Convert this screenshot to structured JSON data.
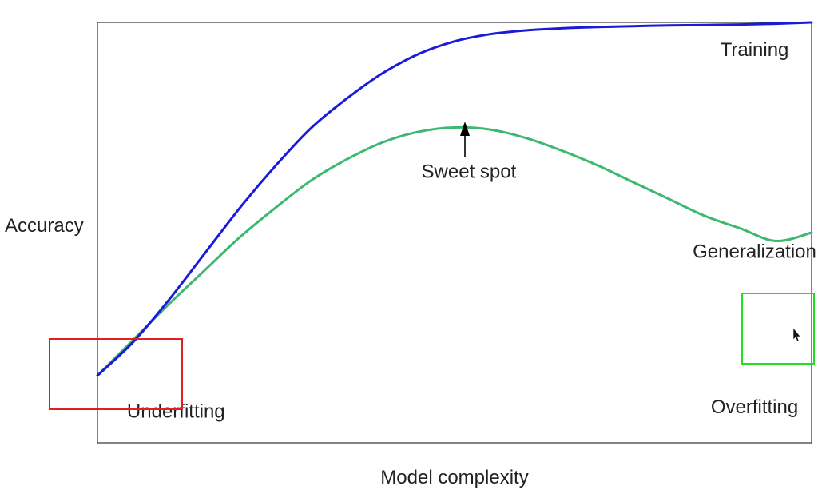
{
  "chart_data": {
    "type": "line",
    "title": "",
    "xlabel": "Model complexity",
    "ylabel": "Accuracy",
    "xlim": [
      0,
      1
    ],
    "ylim": [
      0,
      1
    ],
    "grid": false,
    "legend": "none",
    "series": [
      {
        "name": "Training",
        "color": "#1a1adb",
        "x": [
          0,
          0.05,
          0.1,
          0.15,
          0.2,
          0.25,
          0.3,
          0.35,
          0.4,
          0.45,
          0.5,
          0.55,
          0.6,
          0.65,
          0.7,
          0.75,
          0.8,
          0.85,
          0.9,
          0.95,
          1
        ],
        "y": [
          0.16,
          0.24,
          0.34,
          0.45,
          0.56,
          0.66,
          0.75,
          0.82,
          0.88,
          0.925,
          0.955,
          0.972,
          0.981,
          0.986,
          0.989,
          0.991,
          0.993,
          0.994,
          0.995,
          0.997,
          1.0
        ]
      },
      {
        "name": "Generalization",
        "color": "#3cb870",
        "x": [
          0,
          0.05,
          0.1,
          0.15,
          0.2,
          0.25,
          0.3,
          0.35,
          0.4,
          0.45,
          0.5,
          0.55,
          0.6,
          0.65,
          0.7,
          0.75,
          0.8,
          0.85,
          0.9,
          0.95,
          1
        ],
        "y": [
          0.16,
          0.245,
          0.33,
          0.41,
          0.49,
          0.56,
          0.625,
          0.675,
          0.715,
          0.74,
          0.75,
          0.745,
          0.725,
          0.695,
          0.66,
          0.62,
          0.58,
          0.54,
          0.51,
          0.48,
          0.5
        ]
      }
    ],
    "annotations": [
      {
        "text": "Training",
        "x": 0.92,
        "y": 0.92
      },
      {
        "text": "Sweet spot",
        "x": 0.52,
        "y": 0.63
      },
      {
        "text": "Generalization",
        "x": 0.92,
        "y": 0.44
      },
      {
        "text": "Underfitting",
        "x": 0.11,
        "y": 0.06
      },
      {
        "text": "Overfitting",
        "x": 0.92,
        "y": 0.07
      }
    ]
  },
  "overlay": {
    "red_box_color": "#e02020",
    "green_box_color": "#22dd22",
    "cursor_icon": "mouse-pointer-icon"
  }
}
